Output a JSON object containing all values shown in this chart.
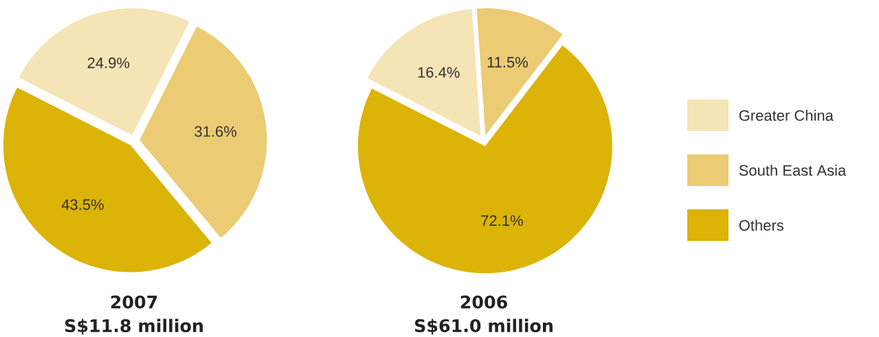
{
  "chart_data": [
    {
      "type": "pie",
      "title": "2007",
      "subtitle": "S$11.8 million",
      "categories": [
        null,
        null,
        null
      ],
      "values": [
        24.9,
        31.6,
        43.5
      ],
      "value_labels": [
        "24.9%",
        "31.6%",
        "43.5%"
      ],
      "colors": [
        "#f5e4b5",
        "#ebcb73",
        "#dcb307"
      ]
    },
    {
      "type": "pie",
      "title": "2006",
      "subtitle": "S$61.0 million",
      "categories": [
        "Greater China",
        "South East Asia",
        "Others"
      ],
      "values": [
        16.4,
        11.5,
        72.1
      ],
      "value_labels": [
        "16.4%",
        "11.5%",
        "72.1%"
      ],
      "colors": [
        "#f5e4b5",
        "#ebcb73",
        "#dcb307"
      ],
      "legend": "right"
    }
  ]
}
